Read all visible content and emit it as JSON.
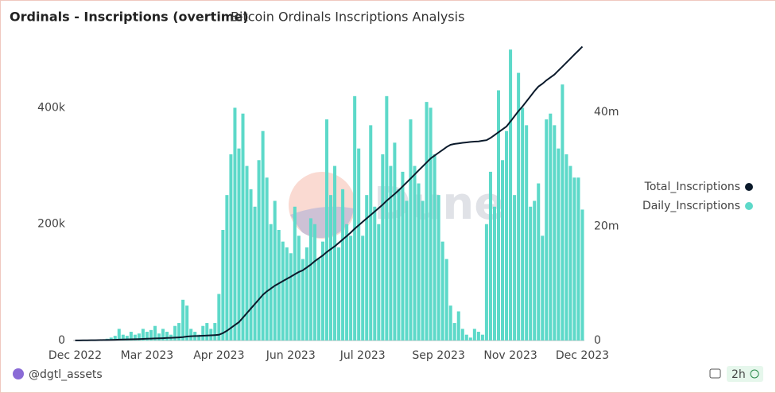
{
  "chart_data": {
    "type": "bar_line",
    "title": "Ordinals - Inscriptions (overtime)",
    "subtitle": "Bitcoin Ordinals Inscriptions Analysis",
    "watermark": "Dune",
    "author": "@dgtl_assets",
    "refresh": "2h",
    "categories": [
      "Dec 2022",
      null,
      null,
      null,
      null,
      null,
      null,
      null,
      null,
      null,
      null,
      null,
      null,
      null,
      null,
      null,
      null,
      null,
      "Mar 2023",
      null,
      null,
      null,
      null,
      null,
      null,
      null,
      null,
      null,
      null,
      null,
      null,
      null,
      null,
      null,
      null,
      null,
      "Apr 2023",
      null,
      null,
      null,
      null,
      null,
      null,
      null,
      null,
      null,
      null,
      null,
      null,
      null,
      null,
      null,
      null,
      null,
      "Jun 2023",
      null,
      null,
      null,
      null,
      null,
      null,
      null,
      null,
      null,
      null,
      null,
      null,
      null,
      null,
      null,
      null,
      null,
      "Jul 2023",
      null,
      null,
      null,
      null,
      null,
      null,
      null,
      null,
      null,
      null,
      null,
      null,
      null,
      null,
      null,
      null,
      null,
      null,
      "Sep 2023",
      null,
      null,
      null,
      null,
      null,
      null,
      null,
      null,
      null,
      null,
      null,
      null,
      null,
      null,
      null,
      null,
      null,
      "Nov 2023",
      null,
      null,
      null,
      null,
      null,
      null,
      null,
      null,
      null,
      null,
      null,
      null,
      null,
      null,
      null,
      null,
      null,
      "Dec 2023"
    ],
    "series": [
      {
        "name": "Total_Inscriptions",
        "type": "line",
        "axis": "y2",
        "color": "#0b1a2b",
        "values": [
          10000,
          20000,
          30000,
          40000,
          50000,
          60000,
          70000,
          80000,
          90000,
          100000,
          120000,
          150000,
          170000,
          190000,
          210000,
          230000,
          250000,
          280000,
          300000,
          330000,
          360000,
          380000,
          410000,
          440000,
          470000,
          500000,
          540000,
          600000,
          700000,
          750000,
          780000,
          800000,
          830000,
          860000,
          900000,
          950000,
          1000000,
          1300000,
          1700000,
          2200000,
          2700000,
          3200000,
          4000000,
          4800000,
          5600000,
          6400000,
          7200000,
          8000000,
          8600000,
          9100000,
          9600000,
          10000000,
          10400000,
          10800000,
          11200000,
          11600000,
          12000000,
          12300000,
          12800000,
          13300000,
          13900000,
          14400000,
          14900000,
          15500000,
          16000000,
          16500000,
          17100000,
          17700000,
          18300000,
          18900000,
          19600000,
          20200000,
          20800000,
          21400000,
          22000000,
          22600000,
          23200000,
          23800000,
          24500000,
          25100000,
          25700000,
          26300000,
          27000000,
          27700000,
          28400000,
          29100000,
          29800000,
          30500000,
          31200000,
          31900000,
          32400000,
          32900000,
          33400000,
          33900000,
          34300000,
          34450000,
          34550000,
          34650000,
          34720000,
          34800000,
          34850000,
          34900000,
          35000000,
          35100000,
          35500000,
          36000000,
          36500000,
          37000000,
          37500000,
          38400000,
          39300000,
          40200000,
          41000000,
          41900000,
          42800000,
          43700000,
          44500000,
          45000000,
          45600000,
          46100000,
          46600000,
          47300000,
          48000000,
          48700000,
          49400000,
          50100000,
          50800000,
          51500000
        ]
      },
      {
        "name": "Daily_Inscriptions",
        "type": "bar",
        "axis": "y",
        "color": "#5dd9c9",
        "values": [
          0,
          0,
          0,
          0,
          1000,
          1000,
          2000,
          2000,
          3000,
          5000,
          8000,
          20000,
          10000,
          8000,
          15000,
          10000,
          12000,
          20000,
          15000,
          18000,
          25000,
          12000,
          20000,
          15000,
          10000,
          25000,
          30000,
          70000,
          60000,
          20000,
          15000,
          10000,
          25000,
          30000,
          20000,
          30000,
          80000,
          190000,
          250000,
          320000,
          400000,
          330000,
          390000,
          300000,
          260000,
          230000,
          310000,
          360000,
          280000,
          200000,
          240000,
          190000,
          170000,
          160000,
          150000,
          230000,
          180000,
          140000,
          160000,
          210000,
          200000,
          140000,
          170000,
          380000,
          250000,
          300000,
          160000,
          260000,
          200000,
          180000,
          420000,
          330000,
          180000,
          250000,
          370000,
          230000,
          200000,
          320000,
          420000,
          300000,
          340000,
          260000,
          290000,
          240000,
          380000,
          300000,
          270000,
          240000,
          410000,
          400000,
          320000,
          250000,
          170000,
          140000,
          60000,
          30000,
          50000,
          20000,
          10000,
          5000,
          20000,
          15000,
          10000,
          200000,
          290000,
          230000,
          430000,
          310000,
          360000,
          500000,
          250000,
          460000,
          400000,
          370000,
          230000,
          240000,
          270000,
          180000,
          380000,
          390000,
          370000,
          330000,
          440000,
          320000,
          300000,
          280000,
          280000,
          225000
        ]
      }
    ],
    "ylim": [
      0,
      510000
    ],
    "yticks": [
      0,
      {
        "value": 200000,
        "label": "200k"
      },
      {
        "value": 400000,
        "label": "400k"
      }
    ],
    "y2lim": [
      0,
      52000000
    ],
    "y2ticks": [
      0,
      {
        "value": 20000000,
        "label": "20m"
      },
      {
        "value": 40000000,
        "label": "40m"
      }
    ],
    "legend": "right"
  }
}
